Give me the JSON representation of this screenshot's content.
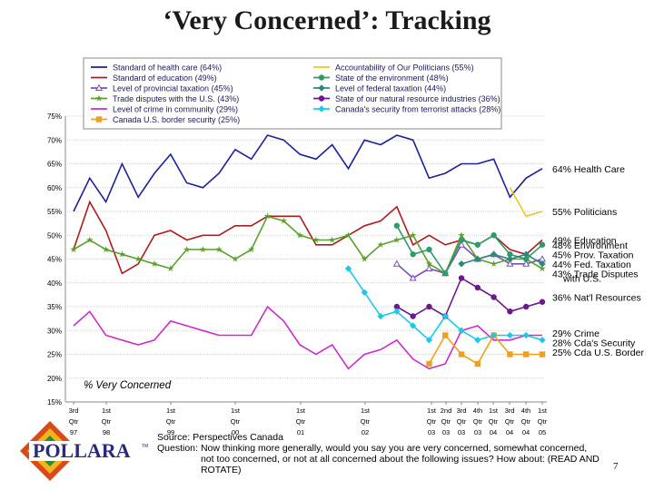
{
  "title": "‘Very Concerned’: Tracking",
  "chart_data": {
    "type": "line",
    "ylabel_inside": "% Very Concerned",
    "ylim": [
      15,
      75
    ],
    "yticks": [
      "15%",
      "20%",
      "25%",
      "30%",
      "35%",
      "40%",
      "45%",
      "50%",
      "55%",
      "60%",
      "65%",
      "70%",
      "75%"
    ],
    "x_labels": [
      [
        "3rd",
        "Qtr",
        "97"
      ],
      [
        "1st",
        "Qtr",
        "98"
      ],
      [
        "1st",
        "Qtr",
        "99"
      ],
      [
        "1st",
        "Qtr",
        "00"
      ],
      [
        "1st",
        "Qtr",
        "01"
      ],
      [
        "1st",
        "Qtr",
        "02"
      ],
      [
        "1st",
        "Qtr",
        "03"
      ],
      [
        "2nd",
        "Qtr",
        "03"
      ],
      [
        "3rd",
        "Qtr",
        "03"
      ],
      [
        "4th",
        "Qtr",
        "03"
      ],
      [
        "1st",
        "Qtr",
        "04"
      ],
      [
        "3rd",
        "Qtr",
        "04"
      ],
      [
        "4th",
        "Qtr",
        "04"
      ],
      [
        "1st",
        "Qtr",
        "05"
      ]
    ],
    "series": [
      {
        "name": "Standard of health care (64%)",
        "color": "#1f1f9a",
        "marker": "none",
        "values": [
          55,
          62,
          57,
          65,
          58,
          63,
          67,
          61,
          60,
          63,
          68,
          66,
          71,
          70,
          67,
          66,
          69,
          64,
          70,
          69,
          71,
          70,
          62,
          63,
          65,
          65,
          66,
          58,
          62,
          64
        ]
      },
      {
        "name": "Standard of education (49%)",
        "color": "#b01c1c",
        "marker": "none",
        "values": [
          47,
          57,
          51,
          42,
          44,
          50,
          51,
          49,
          50,
          50,
          52,
          52,
          54,
          54,
          54,
          48,
          48,
          50,
          52,
          53,
          56,
          48,
          50,
          48,
          49,
          48,
          50,
          47,
          46,
          49
        ]
      },
      {
        "name": "Level of provincial taxation (45%)",
        "color": "#7a4fb8",
        "marker": "triangle",
        "values": [
          null,
          null,
          null,
          null,
          null,
          null,
          null,
          null,
          null,
          null,
          null,
          null,
          null,
          null,
          null,
          null,
          null,
          null,
          null,
          null,
          44,
          41,
          43,
          42,
          48,
          45,
          46,
          44,
          44,
          45
        ]
      },
      {
        "name": "Trade disputes with the U.S. (43%)",
        "color": "#5aa02c",
        "marker": "star",
        "values": [
          47,
          49,
          47,
          46,
          45,
          44,
          43,
          47,
          47,
          47,
          45,
          47,
          54,
          53,
          50,
          49,
          49,
          50,
          45,
          48,
          49,
          50,
          44,
          42,
          50,
          45,
          44,
          45,
          45,
          43
        ]
      },
      {
        "name": "Level of crime in community (29%)",
        "color": "#cc2ccc",
        "marker": "none",
        "values": [
          31,
          34,
          29,
          28,
          27,
          28,
          32,
          31,
          30,
          29,
          29,
          29,
          35,
          32,
          27,
          25,
          27,
          22,
          25,
          26,
          28,
          24,
          22,
          23,
          30,
          31,
          28,
          28,
          29,
          29
        ]
      },
      {
        "name": "Canada U.S. border security (25%)",
        "color": "#f0a020",
        "marker": "square",
        "values": [
          null,
          null,
          null,
          null,
          null,
          null,
          null,
          null,
          null,
          null,
          null,
          null,
          null,
          null,
          null,
          null,
          null,
          null,
          null,
          null,
          null,
          null,
          23,
          29,
          25,
          23,
          29,
          25,
          25,
          25
        ]
      },
      {
        "name": "Accountability of Our Politicians (55%)",
        "color": "#e8c820",
        "marker": "none",
        "values": [
          null,
          null,
          null,
          null,
          null,
          null,
          null,
          null,
          null,
          null,
          null,
          null,
          null,
          null,
          null,
          null,
          null,
          null,
          null,
          null,
          null,
          null,
          null,
          null,
          null,
          null,
          null,
          60,
          54,
          55
        ]
      },
      {
        "name": "State of the environment (48%)",
        "color": "#2f9a6a",
        "marker": "circle",
        "values": [
          null,
          null,
          null,
          null,
          null,
          null,
          null,
          null,
          null,
          null,
          null,
          null,
          null,
          null,
          null,
          null,
          null,
          null,
          null,
          null,
          52,
          46,
          47,
          42,
          49,
          48,
          50,
          46,
          45,
          48
        ]
      },
      {
        "name": "Level of federal taxation (44%)",
        "color": "#2a8a7a",
        "marker": "diamond",
        "values": [
          null,
          null,
          null,
          null,
          null,
          null,
          null,
          null,
          null,
          null,
          null,
          null,
          null,
          null,
          null,
          null,
          null,
          null,
          null,
          null,
          null,
          null,
          null,
          null,
          44,
          45,
          46,
          45,
          46,
          44
        ]
      },
      {
        "name": "State of our natural resource industries (36%)",
        "color": "#6a1a8a",
        "marker": "circle",
        "values": [
          null,
          null,
          null,
          null,
          null,
          null,
          null,
          null,
          null,
          null,
          null,
          null,
          null,
          null,
          null,
          null,
          null,
          null,
          null,
          null,
          35,
          33,
          35,
          33,
          41,
          39,
          37,
          34,
          35,
          36
        ]
      },
      {
        "name": "Canada's security from terrorist attacks (28%)",
        "color": "#20c8e8",
        "marker": "diamond",
        "values": [
          null,
          null,
          null,
          null,
          null,
          null,
          null,
          null,
          null,
          null,
          null,
          null,
          null,
          null,
          null,
          null,
          null,
          43,
          38,
          33,
          34,
          31,
          28,
          33,
          30,
          28,
          29,
          29,
          29,
          28
        ]
      }
    ],
    "right_labels": [
      {
        "text": "64% Health Care",
        "value": 64
      },
      {
        "text": "55% Politicians",
        "value": 55
      },
      {
        "text": "49% Education",
        "value": 49
      },
      {
        "text": "48% Environment",
        "value": 48
      },
      {
        "text": "45% Prov. Taxation",
        "value": 46
      },
      {
        "text": "44% Fed. Taxation",
        "value": 44
      },
      {
        "text": "43% Trade Disputes",
        "value": 42
      },
      {
        "text": "with U.S.",
        "value": 41
      },
      {
        "text": "36% Nat'l Resources",
        "value": 37
      },
      {
        "text": "29% Crime",
        "value": 29.5
      },
      {
        "text": "28% Cda's Security",
        "value": 27.5
      },
      {
        "text": "25% Cda U.S. Border",
        "value": 25.5
      }
    ]
  },
  "source_line": "Source: Perspectives Canada",
  "question_label": "Question:",
  "question_text": "Now thinking more generally, would you say you are very concerned, somewhat concerned, not too concerned, or not at all concerned about the following issues? How about: (READ AND ROTATE)",
  "logo_text": "POLLARA",
  "logo_tm": "TM",
  "page_number": "7"
}
